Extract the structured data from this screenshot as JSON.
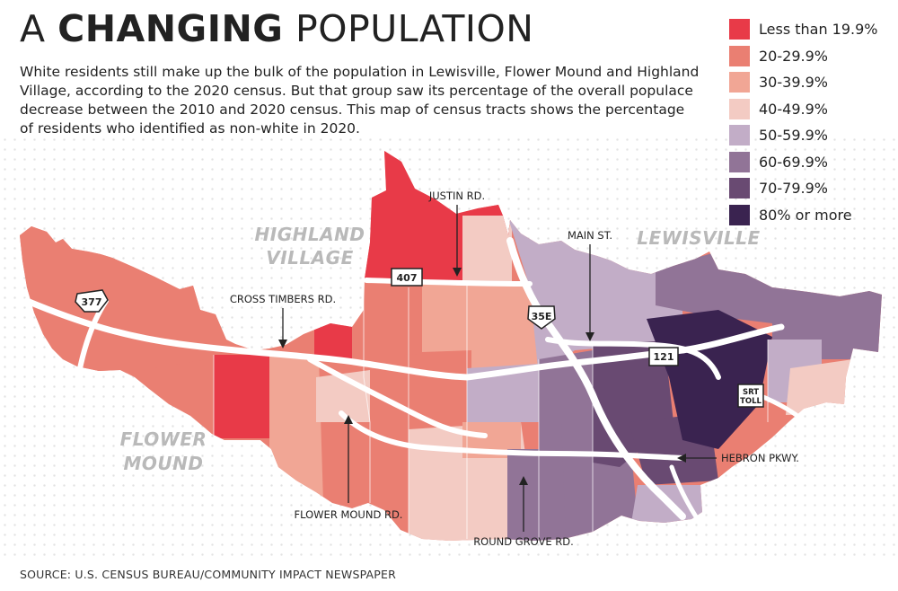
{
  "title": {
    "prefix": "A",
    "emphasis": "CHANGING",
    "suffix": "POPULATION"
  },
  "intro": "White residents still make up the bulk of the population in Lewisville, Flower Mound and Highland Village, according to the 2020 census. But that group saw its percentage of the overall populace decrease between the 2010 and 2020 census. This map of census tracts shows the percentage of residents who identified as non-white in 2020.",
  "legend": [
    {
      "label": "Less than 19.9%",
      "color": "#e83a48"
    },
    {
      "label": "20-29.9%",
      "color": "#ea7f72"
    },
    {
      "label": "30-39.9%",
      "color": "#f1a695"
    },
    {
      "label": "40-49.9%",
      "color": "#f3cbc3"
    },
    {
      "label": "50-59.9%",
      "color": "#c2adc7"
    },
    {
      "label": "60-69.9%",
      "color": "#917497"
    },
    {
      "label": "70-79.9%",
      "color": "#694a72"
    },
    {
      "label": "80% or more",
      "color": "#3a2350"
    }
  ],
  "regions": {
    "highland_1": "HIGHLAND",
    "highland_2": "VILLAGE",
    "lewisville": "LEWISVILLE",
    "flower_1": "FLOWER",
    "flower_2": "MOUND"
  },
  "roads": {
    "justin": "JUSTIN RD.",
    "main": "MAIN ST.",
    "cross_timbers": "CROSS TIMBERS RD.",
    "hebron": "HEBRON PKWY.",
    "flower_mound_rd": "FLOWER MOUND RD.",
    "round_grove": "ROUND GROVE RD."
  },
  "shields": {
    "us377": "377",
    "sh407": "407",
    "i35e": "35E",
    "sh121": "121",
    "srt": "SRT",
    "toll": "TOLL"
  },
  "source": "SOURCE: U.S. CENSUS BUREAU/COMMUNITY IMPACT NEWSPAPER"
}
